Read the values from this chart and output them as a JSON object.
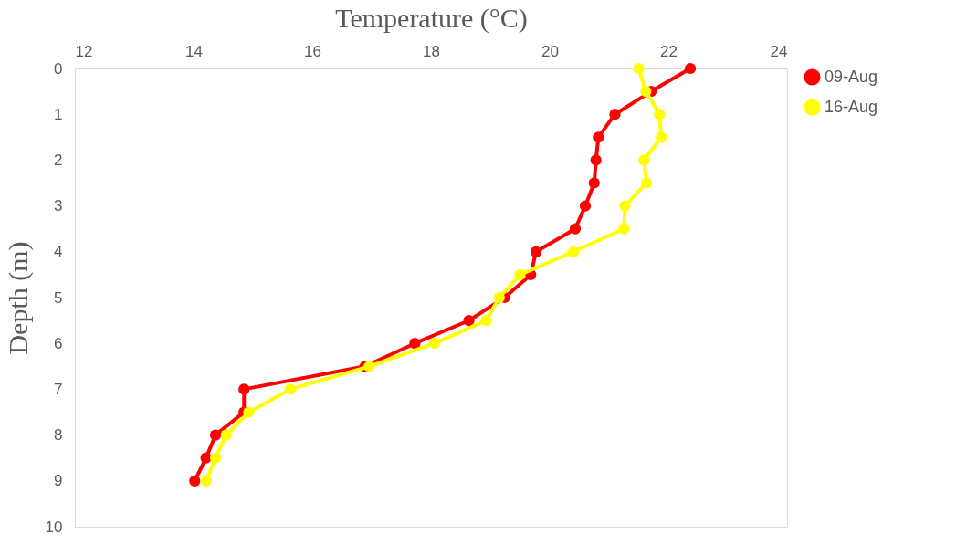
{
  "chart_data": {
    "type": "line",
    "xlabel": "Temperature (°C)",
    "ylabel": "Depth (m)",
    "xlim": [
      12,
      24
    ],
    "xticks": [
      12,
      14,
      16,
      18,
      20,
      22,
      24
    ],
    "ylim": [
      10,
      0
    ],
    "yticks": [
      0,
      1,
      2,
      3,
      4,
      5,
      6,
      7,
      8,
      9,
      10
    ],
    "grid": false,
    "legend": "right",
    "marker": "circle",
    "line_style": "solid",
    "series": [
      {
        "name": "09-Aug",
        "color": "#ff0000",
        "x": [
          22.37,
          21.71,
          21.1,
          20.82,
          20.78,
          20.75,
          20.6,
          20.43,
          19.77,
          19.68,
          19.24,
          18.64,
          17.73,
          16.89,
          14.85,
          14.85,
          14.37,
          14.21,
          14.02
        ],
        "values": [
          0,
          0.5,
          1,
          1.5,
          2,
          2.5,
          3,
          3.5,
          4,
          4.5,
          5,
          5.5,
          6,
          6.5,
          7,
          7.5,
          8,
          8.5,
          9
        ]
      },
      {
        "name": "16-Aug",
        "color": "#ffff00",
        "x": [
          21.5,
          21.62,
          21.85,
          21.88,
          21.59,
          21.63,
          21.27,
          21.25,
          20.4,
          19.5,
          19.15,
          18.93,
          18.06,
          16.96,
          15.63,
          14.93,
          14.55,
          14.37,
          14.21
        ],
        "values": [
          0,
          0.5,
          1,
          1.5,
          2,
          2.5,
          3,
          3.5,
          4,
          4.5,
          5,
          5.5,
          6,
          6.5,
          7,
          7.5,
          8,
          8.5,
          9
        ]
      }
    ]
  }
}
